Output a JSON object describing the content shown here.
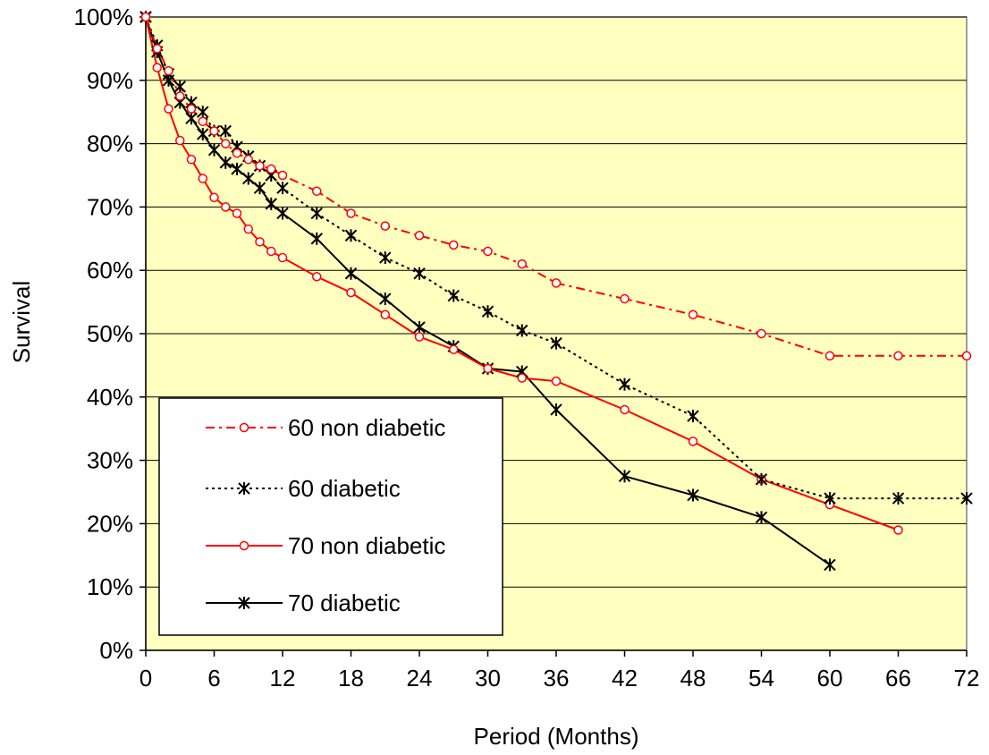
{
  "chart_data": {
    "type": "line",
    "title": "",
    "xlabel": "Period (Months)",
    "ylabel": "Survival",
    "xlim": [
      0,
      72
    ],
    "ylim": [
      0,
      100
    ],
    "x_ticks": [
      0,
      6,
      12,
      18,
      24,
      30,
      36,
      42,
      48,
      54,
      60,
      66,
      72
    ],
    "y_ticks": [
      0,
      10,
      20,
      30,
      40,
      50,
      60,
      70,
      80,
      90,
      100
    ],
    "x_tick_labels": [
      "0",
      "6",
      "12",
      "18",
      "24",
      "30",
      "36",
      "42",
      "48",
      "54",
      "60",
      "66",
      "72"
    ],
    "y_tick_labels": [
      "0%",
      "10%",
      "20%",
      "30%",
      "40%",
      "50%",
      "60%",
      "70%",
      "80%",
      "90%",
      "100%"
    ],
    "grid": "horizontal",
    "plot_background": "#FFFFC0",
    "legend_position": "bottom-left",
    "series": [
      {
        "name": "60 non diabetic",
        "color": "#FF0000",
        "line_style": "dashdot",
        "marker": "open-circle",
        "x": [
          0,
          1,
          2,
          3,
          4,
          5,
          6,
          7,
          8,
          9,
          10,
          11,
          12,
          15,
          18,
          21,
          24,
          27,
          30,
          33,
          36,
          42,
          48,
          54,
          60,
          66,
          72
        ],
        "y": [
          100,
          95,
          91.5,
          87.5,
          85.5,
          83.5,
          82,
          80,
          78.5,
          77.5,
          76.5,
          76,
          75,
          72.5,
          69,
          67,
          65.5,
          64,
          63,
          61,
          58,
          55.5,
          53,
          50,
          46.5,
          46.5,
          46.5
        ]
      },
      {
        "name": "60 diabetic",
        "color": "#000000",
        "line_style": "dotted",
        "marker": "asterisk",
        "x": [
          0,
          1,
          2,
          3,
          4,
          5,
          6,
          7,
          8,
          9,
          10,
          11,
          12,
          15,
          18,
          21,
          24,
          27,
          30,
          33,
          36,
          42,
          48,
          54,
          60,
          66,
          72
        ],
        "y": [
          100,
          95.5,
          91,
          89,
          86.5,
          85,
          82,
          82,
          79.5,
          78,
          76.5,
          75,
          73,
          69,
          65.5,
          62,
          59.5,
          56,
          53.5,
          50.5,
          48.5,
          42,
          37,
          27,
          24,
          24,
          24
        ]
      },
      {
        "name": "70 non diabetic",
        "color": "#FF0000",
        "line_style": "solid",
        "marker": "open-circle",
        "x": [
          0,
          1,
          2,
          3,
          4,
          5,
          6,
          7,
          8,
          9,
          10,
          11,
          12,
          15,
          18,
          21,
          24,
          27,
          30,
          33,
          36,
          42,
          48,
          54,
          60,
          66
        ],
        "y": [
          100,
          92,
          85.5,
          80.5,
          77.5,
          74.5,
          71.5,
          70,
          69,
          66.5,
          64.5,
          63,
          62,
          59,
          56.5,
          53,
          49.5,
          47.5,
          44.5,
          43,
          42.5,
          38,
          33,
          27,
          23,
          19
        ]
      },
      {
        "name": "70 diabetic",
        "color": "#000000",
        "line_style": "solid",
        "marker": "asterisk",
        "x": [
          0,
          1,
          2,
          3,
          4,
          5,
          6,
          7,
          8,
          9,
          10,
          11,
          12,
          15,
          18,
          21,
          24,
          27,
          30,
          33,
          36,
          42,
          48,
          54,
          60
        ],
        "y": [
          100,
          94.5,
          90,
          86.5,
          84,
          81.5,
          79,
          77,
          76,
          74.5,
          73,
          70.5,
          69,
          65,
          59.5,
          55.5,
          51,
          48,
          44.5,
          44,
          38,
          27.5,
          24.5,
          21,
          13.5
        ]
      }
    ]
  }
}
